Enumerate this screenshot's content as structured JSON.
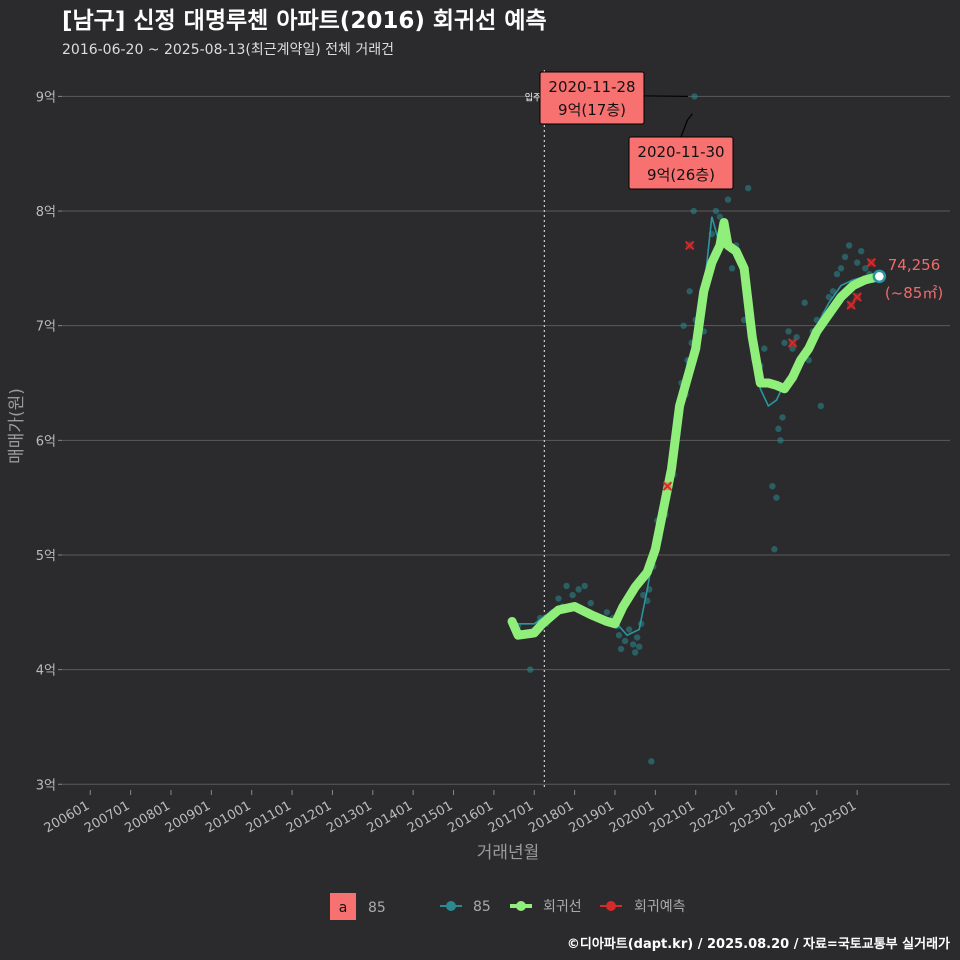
{
  "header": {
    "title": "[남구] 신정 대명루첸 아파트(2016) 회귀선 예측",
    "subtitle": "2016-06-20 ~ 2025-08-13(최근계약일) 전체 거래건"
  },
  "footer": {
    "credit": "©디아파트(dapt.kr) / 2025.08.20 / 자료=국토교통부 실거래가"
  },
  "colors": {
    "background": "#2b2b2d",
    "grid": "#5a5a5a",
    "trade_dot": "#2a8a90",
    "trade_line": "#2a96a0",
    "regression": "#90ee7a",
    "prediction": "#d42a2a",
    "annotation_fill": "#f87171",
    "end_label": "#f06a6a"
  },
  "chart_data": {
    "type": "scatter",
    "title": "[남구] 신정 대명루첸 아파트(2016) 회귀선 예측",
    "xlabel": "거래년월",
    "ylabel": "매매가(원)",
    "xlim": [
      2005.3,
      2027.3
    ],
    "ylim": [
      2.95,
      9.3
    ],
    "x_ticks": [
      {
        "v": 2006.0,
        "label": "200601"
      },
      {
        "v": 2007.0,
        "label": "200701"
      },
      {
        "v": 2008.0,
        "label": "200801"
      },
      {
        "v": 2009.0,
        "label": "200901"
      },
      {
        "v": 2010.0,
        "label": "201001"
      },
      {
        "v": 2011.0,
        "label": "201101"
      },
      {
        "v": 2012.0,
        "label": "201201"
      },
      {
        "v": 2013.0,
        "label": "201301"
      },
      {
        "v": 2014.0,
        "label": "201401"
      },
      {
        "v": 2015.0,
        "label": "201501"
      },
      {
        "v": 2016.0,
        "label": "201601"
      },
      {
        "v": 2017.0,
        "label": "201701"
      },
      {
        "v": 2018.0,
        "label": "201801"
      },
      {
        "v": 2019.0,
        "label": "201901"
      },
      {
        "v": 2020.0,
        "label": "202001"
      },
      {
        "v": 2021.0,
        "label": "202101"
      },
      {
        "v": 2022.0,
        "label": "202201"
      },
      {
        "v": 2023.0,
        "label": "202301"
      },
      {
        "v": 2024.0,
        "label": "202401"
      },
      {
        "v": 2025.0,
        "label": "202501"
      }
    ],
    "y_ticks": [
      {
        "v": 3,
        "label": "3억"
      },
      {
        "v": 4,
        "label": "4억"
      },
      {
        "v": 5,
        "label": "5억"
      },
      {
        "v": 6,
        "label": "6억"
      },
      {
        "v": 7,
        "label": "7억"
      },
      {
        "v": 8,
        "label": "8억"
      },
      {
        "v": 9,
        "label": "9억"
      }
    ],
    "vline": {
      "x": 2017.25,
      "label": "입주"
    },
    "series": [
      {
        "name": "85",
        "kind": "trades",
        "points": [
          [
            2016.45,
            4.43
          ],
          [
            2016.5,
            4.4
          ],
          [
            2016.6,
            4.38
          ],
          [
            2016.9,
            4.0
          ],
          [
            2017.0,
            4.35
          ],
          [
            2017.15,
            4.45
          ],
          [
            2017.3,
            4.4
          ],
          [
            2017.45,
            4.5
          ],
          [
            2017.6,
            4.62
          ],
          [
            2017.7,
            4.55
          ],
          [
            2017.8,
            4.73
          ],
          [
            2017.95,
            4.65
          ],
          [
            2018.1,
            4.7
          ],
          [
            2018.25,
            4.73
          ],
          [
            2018.4,
            4.58
          ],
          [
            2018.6,
            4.45
          ],
          [
            2018.8,
            4.5
          ],
          [
            2018.95,
            4.45
          ],
          [
            2019.05,
            4.38
          ],
          [
            2019.1,
            4.3
          ],
          [
            2019.15,
            4.18
          ],
          [
            2019.25,
            4.25
          ],
          [
            2019.35,
            4.35
          ],
          [
            2019.45,
            4.22
          ],
          [
            2019.5,
            4.15
          ],
          [
            2019.55,
            4.28
          ],
          [
            2019.6,
            4.2
          ],
          [
            2019.65,
            4.4
          ],
          [
            2019.7,
            4.65
          ],
          [
            2019.75,
            4.8
          ],
          [
            2019.8,
            4.6
          ],
          [
            2019.85,
            4.7
          ],
          [
            2019.9,
            3.2
          ],
          [
            2019.95,
            4.9
          ],
          [
            2020.0,
            5.05
          ],
          [
            2020.05,
            5.3
          ],
          [
            2020.1,
            5.15
          ],
          [
            2020.15,
            5.25
          ],
          [
            2020.2,
            5.45
          ],
          [
            2020.25,
            5.35
          ],
          [
            2020.3,
            5.55
          ],
          [
            2020.35,
            5.6
          ],
          [
            2020.4,
            5.8
          ],
          [
            2020.45,
            5.7
          ],
          [
            2020.5,
            5.95
          ],
          [
            2020.55,
            6.05
          ],
          [
            2020.6,
            6.3
          ],
          [
            2020.65,
            6.5
          ],
          [
            2020.7,
            7.0
          ],
          [
            2020.75,
            6.4
          ],
          [
            2020.8,
            6.7
          ],
          [
            2020.85,
            7.3
          ],
          [
            2020.9,
            6.85
          ],
          [
            2020.95,
            8.0
          ],
          [
            2020.97,
            9.0
          ],
          [
            2021.0,
            7.05
          ],
          [
            2021.1,
            7.15
          ],
          [
            2021.2,
            6.95
          ],
          [
            2021.3,
            7.4
          ],
          [
            2021.4,
            7.8
          ],
          [
            2021.5,
            8.0
          ],
          [
            2021.6,
            7.95
          ],
          [
            2021.7,
            7.75
          ],
          [
            2021.8,
            8.1
          ],
          [
            2021.9,
            7.5
          ],
          [
            2022.0,
            7.7
          ],
          [
            2022.1,
            7.6
          ],
          [
            2022.2,
            7.05
          ],
          [
            2022.3,
            8.2
          ],
          [
            2022.4,
            6.95
          ],
          [
            2022.5,
            6.75
          ],
          [
            2022.6,
            6.65
          ],
          [
            2022.7,
            6.8
          ],
          [
            2022.8,
            6.5
          ],
          [
            2022.9,
            5.6
          ],
          [
            2022.95,
            5.05
          ],
          [
            2023.0,
            5.5
          ],
          [
            2023.05,
            6.1
          ],
          [
            2023.1,
            6.0
          ],
          [
            2023.15,
            6.2
          ],
          [
            2023.2,
            6.85
          ],
          [
            2023.3,
            6.95
          ],
          [
            2023.4,
            6.8
          ],
          [
            2023.5,
            6.9
          ],
          [
            2023.6,
            6.7
          ],
          [
            2023.7,
            7.2
          ],
          [
            2023.8,
            6.7
          ],
          [
            2023.9,
            6.95
          ],
          [
            2024.0,
            7.05
          ],
          [
            2024.1,
            6.3
          ],
          [
            2024.2,
            7.1
          ],
          [
            2024.3,
            7.25
          ],
          [
            2024.4,
            7.3
          ],
          [
            2024.5,
            7.45
          ],
          [
            2024.6,
            7.5
          ],
          [
            2024.7,
            7.6
          ],
          [
            2024.8,
            7.7
          ],
          [
            2024.9,
            7.35
          ],
          [
            2025.0,
            7.55
          ],
          [
            2025.1,
            7.65
          ],
          [
            2025.2,
            7.5
          ],
          [
            2025.3,
            7.45
          ],
          [
            2025.4,
            7.4
          ],
          [
            2025.5,
            7.45
          ]
        ]
      },
      {
        "name": "85",
        "kind": "trade_line",
        "points": [
          [
            2016.45,
            4.4
          ],
          [
            2017.0,
            4.4
          ],
          [
            2017.5,
            4.53
          ],
          [
            2018.0,
            4.58
          ],
          [
            2018.5,
            4.48
          ],
          [
            2019.0,
            4.42
          ],
          [
            2019.3,
            4.3
          ],
          [
            2019.6,
            4.35
          ],
          [
            2019.8,
            4.7
          ],
          [
            2020.0,
            5.1
          ],
          [
            2020.3,
            5.55
          ],
          [
            2020.6,
            6.1
          ],
          [
            2020.8,
            6.7
          ],
          [
            2021.0,
            6.8
          ],
          [
            2021.2,
            7.3
          ],
          [
            2021.4,
            7.95
          ],
          [
            2021.6,
            7.7
          ],
          [
            2021.8,
            7.8
          ],
          [
            2022.0,
            7.6
          ],
          [
            2022.2,
            7.4
          ],
          [
            2022.4,
            6.7
          ],
          [
            2022.6,
            6.45
          ],
          [
            2022.8,
            6.3
          ],
          [
            2023.0,
            6.35
          ],
          [
            2023.2,
            6.5
          ],
          [
            2023.4,
            6.55
          ],
          [
            2023.6,
            6.7
          ],
          [
            2023.8,
            6.75
          ],
          [
            2024.0,
            7.0
          ],
          [
            2024.3,
            7.2
          ],
          [
            2024.6,
            7.35
          ],
          [
            2024.9,
            7.4
          ],
          [
            2025.2,
            7.43
          ],
          [
            2025.55,
            7.43
          ]
        ]
      },
      {
        "name": "회귀선",
        "kind": "regression",
        "points": [
          [
            2016.45,
            4.42
          ],
          [
            2016.6,
            4.3
          ],
          [
            2017.0,
            4.32
          ],
          [
            2017.2,
            4.4
          ],
          [
            2017.6,
            4.52
          ],
          [
            2018.0,
            4.55
          ],
          [
            2018.4,
            4.48
          ],
          [
            2018.8,
            4.42
          ],
          [
            2019.0,
            4.4
          ],
          [
            2019.2,
            4.55
          ],
          [
            2019.5,
            4.72
          ],
          [
            2019.8,
            4.85
          ],
          [
            2020.0,
            5.05
          ],
          [
            2020.2,
            5.4
          ],
          [
            2020.4,
            5.75
          ],
          [
            2020.6,
            6.3
          ],
          [
            2020.8,
            6.55
          ],
          [
            2021.0,
            6.8
          ],
          [
            2021.2,
            7.3
          ],
          [
            2021.4,
            7.55
          ],
          [
            2021.6,
            7.7
          ],
          [
            2021.7,
            7.9
          ],
          [
            2021.8,
            7.7
          ],
          [
            2022.0,
            7.65
          ],
          [
            2022.2,
            7.5
          ],
          [
            2022.4,
            6.9
          ],
          [
            2022.6,
            6.5
          ],
          [
            2022.8,
            6.5
          ],
          [
            2023.0,
            6.48
          ],
          [
            2023.2,
            6.45
          ],
          [
            2023.4,
            6.55
          ],
          [
            2023.6,
            6.7
          ],
          [
            2023.8,
            6.8
          ],
          [
            2024.0,
            6.95
          ],
          [
            2024.3,
            7.1
          ],
          [
            2024.6,
            7.25
          ],
          [
            2024.9,
            7.35
          ],
          [
            2025.2,
            7.4
          ],
          [
            2025.55,
            7.43
          ]
        ]
      },
      {
        "name": "회귀예측",
        "kind": "prediction",
        "points": [
          [
            2020.85,
            7.7
          ],
          [
            2020.3,
            5.6
          ],
          [
            2023.4,
            6.85
          ],
          [
            2024.85,
            7.18
          ],
          [
            2025.0,
            7.25
          ],
          [
            2025.35,
            7.55
          ]
        ]
      }
    ],
    "annotations": [
      {
        "date": "2020-11-28",
        "value": "9억(17층)",
        "x": 2020.91,
        "y": 9.0
      },
      {
        "date": "2020-11-30",
        "value": "9억(26층)",
        "x": 2020.92,
        "y": 8.83
      }
    ],
    "end_label": {
      "value": "74,256",
      "sub": "(~85㎡)",
      "x": 2025.55,
      "y": 7.43
    },
    "legend": {
      "type_box": {
        "key": "a",
        "label": "85"
      },
      "items": [
        {
          "name": "85",
          "kind": "trade"
        },
        {
          "name": "회귀선",
          "kind": "regression"
        },
        {
          "name": "회귀예측",
          "kind": "prediction"
        }
      ]
    }
  }
}
